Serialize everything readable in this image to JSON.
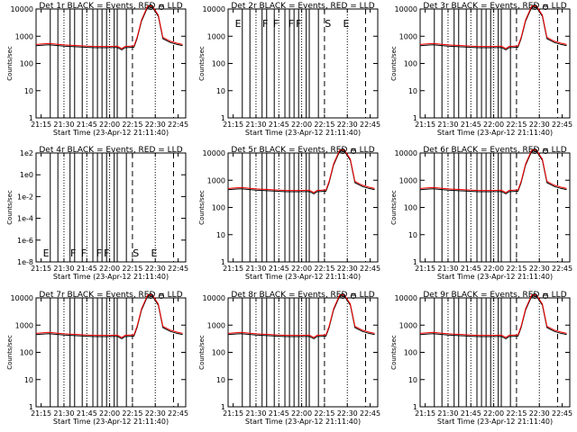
{
  "colors": {
    "events": "#000000",
    "lld": "#ff0000",
    "background": "#ffffff"
  },
  "chart_data": {
    "type": "line",
    "yscale": "log",
    "x_ticks": [
      "21:15",
      "21:30",
      "21:45",
      "22:00",
      "22:15",
      "22:30",
      "22:45"
    ],
    "xlabel": "Start Time (23-Apr-12 21:11:40)",
    "ylabel": "Counts/sec",
    "y_ticks": [
      "1",
      "10",
      "100",
      "1000",
      "10000"
    ],
    "y_ticks_odd": [
      "1e-8",
      "1e-6",
      "1e-4",
      "1e-2",
      "1e0",
      "1e2"
    ],
    "xlim": [
      "21:11:40",
      "22:50:00"
    ],
    "dotted_lines": [
      "21:30",
      "21:45",
      "22:00",
      "22:30"
    ],
    "dashed_lines": [
      "22:15",
      "22:42"
    ],
    "solid_lines": [
      "21:21",
      "21:26",
      "21:34",
      "21:37",
      "21:42",
      "21:49",
      "21:52",
      "21:55",
      "21:58",
      "22:03",
      "22:05",
      "22:11"
    ],
    "event_letters": [
      {
        "t": "21:15",
        "text": "E"
      },
      {
        "t": "21:33",
        "text": "F"
      },
      {
        "t": "21:40",
        "text": "F"
      },
      {
        "t": "21:50",
        "text": "F"
      },
      {
        "t": "21:55",
        "text": "F"
      },
      {
        "t": "22:14",
        "text": "S"
      },
      {
        "t": "22:26",
        "text": "E"
      }
    ],
    "series_profile": {
      "name": "Events / LLD",
      "x": [
        "21:11:40",
        "21:20",
        "21:30",
        "21:40",
        "21:50",
        "22:00",
        "22:05",
        "22:08",
        "22:10",
        "22:16",
        "22:18",
        "22:21",
        "22:25",
        "22:28",
        "22:32",
        "22:35",
        "22:40",
        "22:44",
        "22:48"
      ],
      "y": [
        500,
        540,
        480,
        450,
        420,
        420,
        430,
        350,
        420,
        440,
        900,
        4000,
        13000,
        13000,
        6000,
        900,
        650,
        560,
        500
      ]
    },
    "panels": [
      {
        "title": "Det 1r BLACK = Events, RED = LLD",
        "scale": "normal",
        "has_data": true,
        "letters": false
      },
      {
        "title": "Det 2r BLACK = Events, RED = LLD",
        "scale": "normal",
        "has_data": false,
        "letters": true
      },
      {
        "title": "Det 3r BLACK = Events, RED = LLD",
        "scale": "normal",
        "has_data": true,
        "letters": false
      },
      {
        "title": "Det 4r BLACK = Events, RED = LLD",
        "scale": "odd",
        "has_data": false,
        "letters": true
      },
      {
        "title": "Det 5r BLACK = Events, RED = LLD",
        "scale": "normal",
        "has_data": true,
        "letters": false
      },
      {
        "title": "Det 6r BLACK = Events, RED = LLD",
        "scale": "normal",
        "has_data": true,
        "letters": false
      },
      {
        "title": "Det 7r BLACK = Events, RED = LLD",
        "scale": "normal",
        "has_data": true,
        "letters": false
      },
      {
        "title": "Det 8r BLACK = Events, RED = LLD",
        "scale": "normal",
        "has_data": true,
        "letters": false
      },
      {
        "title": "Det 9r BLACK = Events, RED = LLD",
        "scale": "normal",
        "has_data": true,
        "letters": false
      }
    ]
  }
}
